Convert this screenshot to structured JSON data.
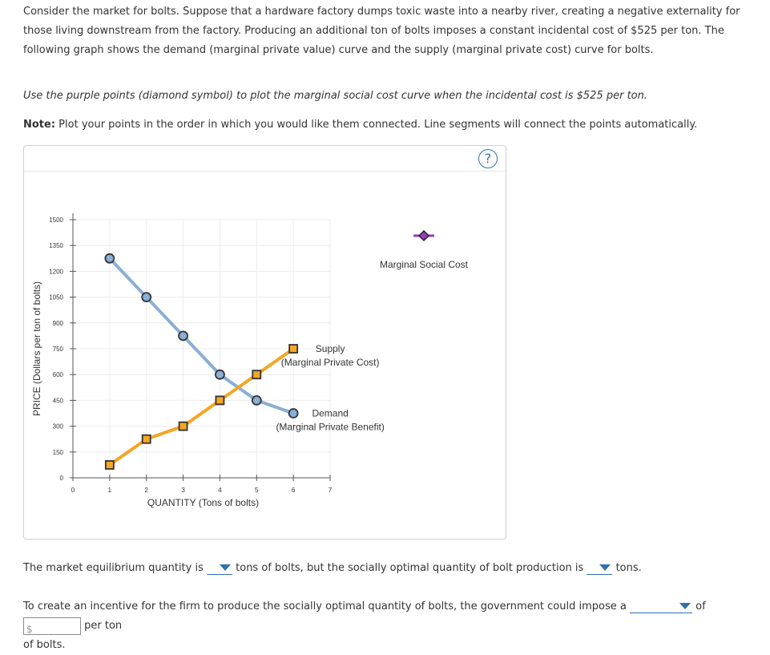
{
  "intro_text": "Consider the market for bolts. Suppose that a hardware factory dumps toxic waste into a nearby river, creating a negative externality for those living downstream from the factory. Producing an additional ton of bolts imposes a constant incidental cost of $525 per ton. The following graph shows the demand (marginal private value) curve and the supply (marginal private cost) curve for bolts.",
  "instruction_text": "Use the purple points (diamond symbol) to plot the marginal social cost curve when the incidental cost is $525 per ton.",
  "note": {
    "label": "Note:",
    "text": " Plot your points in the order in which you would like them connected. Line segments will connect the points automatically."
  },
  "help_button": "?",
  "chart_data": {
    "type": "line",
    "xlabel": "QUANTITY (Tons of bolts)",
    "ylabel": "PRICE (Dollars per ton of bolts)",
    "xlim": [
      0,
      7
    ],
    "ylim": [
      0,
      1500
    ],
    "x_ticks": [
      "0",
      "1",
      "2",
      "3",
      "4",
      "5",
      "6",
      "7"
    ],
    "y_ticks": [
      "0",
      "150",
      "300",
      "450",
      "600",
      "750",
      "900",
      "1050",
      "1200",
      "1350",
      "1500"
    ],
    "grid": true,
    "series": [
      {
        "name": "Demand",
        "sublabel": "(Marginal Private Benefit)",
        "marker": "circle",
        "color": "#8aafd6",
        "x": [
          1,
          2,
          3,
          4,
          5,
          6
        ],
        "y": [
          1275,
          1050,
          825,
          600,
          450,
          375
        ]
      },
      {
        "name": "Supply",
        "sublabel": "(Marginal Private Cost)",
        "marker": "square",
        "color": "#f5a623",
        "x": [
          1,
          2,
          3,
          4,
          5,
          6
        ],
        "y": [
          75,
          225,
          300,
          450,
          600,
          750
        ]
      }
    ],
    "tool": {
      "name": "Marginal Social Cost",
      "marker": "diamond",
      "color": "#9b3bc4"
    }
  },
  "bottom": {
    "line1_before": "The market equilibrium quantity is",
    "line1_middle": "tons of bolts, but the socially optimal quantity of bolt production is",
    "line1_after": "tons.",
    "line2_before": "To create an incentive for the firm to produce the socially optimal quantity of bolts, the government could impose a",
    "line2_of": "of",
    "dollar_sign": "$",
    "per_ton": "per ton",
    "line3": "of bolts."
  }
}
